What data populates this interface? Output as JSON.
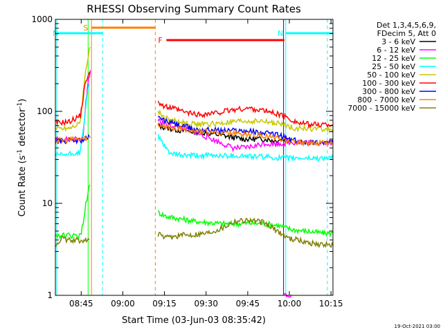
{
  "chart_data": {
    "type": "line",
    "title": "RHESSI Observing Summary Count Rates",
    "xlabel": "Start Time (03-Jun-03 08:35:42)",
    "ylabel": "Count Rate (s",
    "ylabel_sup1": "-1",
    "ylabel_mid": " detector",
    "ylabel_sup2": "-1",
    "ylabel_end": ")",
    "y_scale": "log",
    "ylim": [
      1,
      1000
    ],
    "xlim_minutes": [
      0,
      100
    ],
    "x_ticks": [
      {
        "label": "08:45",
        "value": 9.3
      },
      {
        "label": "09:00",
        "value": 24.3
      },
      {
        "label": "09:15",
        "value": 39.3
      },
      {
        "label": "09:30",
        "value": 54.3
      },
      {
        "label": "09:45",
        "value": 69.3
      },
      {
        "label": "10:00",
        "value": 84.3
      },
      {
        "label": "10:15",
        "value": 99.3
      }
    ],
    "y_ticks": [
      {
        "label": "1",
        "value": 1
      },
      {
        "label": "10",
        "value": 10
      },
      {
        "label": "100",
        "value": 100
      },
      {
        "label": "1000",
        "value": 1000
      }
    ],
    "legend_header": [
      "Det 1,3,4,5,6,9,",
      "FDecim 5, Att 0"
    ],
    "series": [
      {
        "name": "3 - 6 keV",
        "color": "#000000",
        "segments": [
          [
            [
              37,
              70
            ],
            [
              40,
              66
            ],
            [
              45,
              62
            ],
            [
              50,
              60
            ],
            [
              55,
              58
            ],
            [
              60,
              55
            ],
            [
              64,
              52
            ],
            [
              68,
              50
            ],
            [
              72,
              50
            ],
            [
              76,
              50
            ],
            [
              79,
              48
            ],
            [
              82,
              50
            ],
            [
              85,
              50
            ]
          ]
        ]
      },
      {
        "name": "6 - 12 keV",
        "color": "#ff00ff",
        "segments": [
          [
            [
              0,
              50
            ],
            [
              5,
              49
            ],
            [
              9,
              50
            ],
            [
              10,
              55
            ],
            [
              11,
              130
            ],
            [
              12,
              220
            ],
            [
              12.6,
              280
            ]
          ],
          [
            [
              37,
              80
            ],
            [
              40,
              72
            ],
            [
              45,
              66
            ],
            [
              50,
              60
            ],
            [
              55,
              52
            ],
            [
              60,
              45
            ],
            [
              64,
              40
            ],
            [
              68,
              40
            ],
            [
              72,
              42
            ],
            [
              75,
              45
            ],
            [
              79,
              44
            ],
            [
              82,
              45
            ],
            [
              85,
              46
            ],
            [
              90,
              46
            ],
            [
              95,
              46
            ],
            [
              100,
              46
            ]
          ],
          [
            [
              82,
              1
            ],
            [
              85,
              1
            ]
          ]
        ]
      },
      {
        "name": "12 - 25 keV",
        "color": "#00ff00",
        "segments": [
          [
            [
              0,
              4.5
            ],
            [
              9,
              4.4
            ],
            [
              10,
              6
            ],
            [
              11,
              10
            ],
            [
              12.4,
              16
            ]
          ],
          [
            [
              37,
              8
            ],
            [
              40,
              7.2
            ],
            [
              45,
              6.8
            ],
            [
              50,
              6.4
            ],
            [
              55,
              6.2
            ],
            [
              60,
              6.0
            ],
            [
              65,
              6.0
            ],
            [
              70,
              6.1
            ],
            [
              75,
              6.0
            ],
            [
              80,
              5.8
            ],
            [
              85,
              5.2
            ],
            [
              90,
              5.0
            ],
            [
              95,
              4.8
            ],
            [
              100,
              4.7
            ]
          ]
        ]
      },
      {
        "name": "25 - 50 keV",
        "color": "#00ffff",
        "segments": [
          [
            [
              0,
              33
            ],
            [
              5,
              34
            ],
            [
              9,
              36
            ],
            [
              10,
              60
            ],
            [
              11,
              120
            ],
            [
              12.2,
              200
            ]
          ],
          [
            [
              37,
              55
            ],
            [
              39,
              42
            ],
            [
              42,
              34
            ],
            [
              47,
              33
            ],
            [
              55,
              33
            ],
            [
              65,
              33
            ],
            [
              75,
              32
            ],
            [
              82,
              31
            ],
            [
              90,
              31
            ],
            [
              100,
              31
            ]
          ]
        ]
      },
      {
        "name": "50 - 100 keV",
        "color": "#c8c800",
        "segments": [
          [
            [
              0,
              65
            ],
            [
              5,
              66
            ],
            [
              9,
              75
            ],
            [
              10,
              150
            ],
            [
              11,
              300
            ],
            [
              12.5,
              500
            ]
          ],
          [
            [
              37,
              100
            ],
            [
              39,
              86
            ],
            [
              42,
              80
            ],
            [
              47,
              74
            ],
            [
              52,
              72
            ],
            [
              60,
              74
            ],
            [
              67,
              78
            ],
            [
              75,
              78
            ],
            [
              82,
              72
            ],
            [
              86,
              66
            ],
            [
              92,
              65
            ],
            [
              100,
              64
            ]
          ]
        ]
      },
      {
        "name": "100 - 300 keV",
        "color": "#ff0000",
        "segments": [
          [
            [
              0,
              75
            ],
            [
              5,
              77
            ],
            [
              9,
              90
            ],
            [
              10,
              140
            ],
            [
              11,
              220
            ],
            [
              12.6,
              260
            ]
          ],
          [
            [
              37,
              130
            ],
            [
              39,
              113
            ],
            [
              42,
              108
            ],
            [
              47,
              97
            ],
            [
              52,
              92
            ],
            [
              58,
              96
            ],
            [
              64,
              104
            ],
            [
              70,
              108
            ],
            [
              75,
              102
            ],
            [
              80,
              94
            ],
            [
              84,
              84
            ],
            [
              88,
              74
            ],
            [
              92,
              72
            ],
            [
              100,
              72
            ]
          ]
        ]
      },
      {
        "name": "300 - 800 keV",
        "color": "#0000ff",
        "segments": [
          [
            [
              0,
              47
            ],
            [
              5,
              48
            ],
            [
              9,
              48
            ],
            [
              11,
              50
            ],
            [
              12.6,
              52
            ]
          ],
          [
            [
              37,
              85
            ],
            [
              40,
              78
            ],
            [
              45,
              70
            ],
            [
              50,
              64
            ],
            [
              55,
              63
            ],
            [
              60,
              62
            ],
            [
              65,
              62
            ],
            [
              70,
              61
            ],
            [
              75,
              58
            ],
            [
              80,
              56
            ],
            [
              84,
              50
            ],
            [
              88,
              47
            ],
            [
              92,
              46
            ],
            [
              100,
              46
            ]
          ]
        ]
      },
      {
        "name": "800 - 7000 keV",
        "color": "#ff8000",
        "segments": [
          [
            [
              0,
              48
            ],
            [
              5,
              49
            ],
            [
              9,
              50
            ],
            [
              11,
              51
            ],
            [
              12.6,
              52
            ]
          ],
          [
            [
              37,
              70
            ],
            [
              40,
              67
            ],
            [
              45,
              64
            ],
            [
              50,
              62
            ],
            [
              55,
              60
            ],
            [
              60,
              58
            ],
            [
              65,
              57
            ],
            [
              70,
              56
            ],
            [
              75,
              54
            ],
            [
              80,
              52
            ],
            [
              84,
              48
            ],
            [
              88,
              46
            ],
            [
              92,
              45
            ],
            [
              100,
              45
            ]
          ]
        ]
      },
      {
        "name": "7000 - 15000 keV",
        "color": "#808000",
        "segments": [
          [
            [
              0,
              3.5
            ],
            [
              1,
              3.8
            ],
            [
              2,
              4.2
            ],
            [
              4,
              4.0
            ],
            [
              7,
              3.9
            ],
            [
              9,
              4.0
            ],
            [
              12.2,
              4.0
            ]
          ],
          [
            [
              37,
              4.6
            ],
            [
              40,
              4.2
            ],
            [
              45,
              4.5
            ],
            [
              50,
              4.6
            ],
            [
              55,
              4.8
            ],
            [
              60,
              5.4
            ],
            [
              65,
              6.5
            ],
            [
              70,
              6.6
            ],
            [
              75,
              6.2
            ],
            [
              80,
              5.0
            ],
            [
              84,
              4.2
            ],
            [
              90,
              3.8
            ],
            [
              95,
              3.6
            ],
            [
              100,
              3.5
            ]
          ]
        ]
      }
    ],
    "annotation_bars": [
      {
        "label": "S",
        "color": "#ff8000",
        "start": 13,
        "end": 36
      },
      {
        "label": "N",
        "color": "#00ffff",
        "start": -1,
        "end": 17
      },
      {
        "label": "N",
        "color": "#00ffff",
        "start": 83,
        "end": 100
      },
      {
        "label": "F",
        "color": "#ff0000",
        "start": 40,
        "end": 82.5
      }
    ],
    "vertical_markers": [
      {
        "color": "#00ffff",
        "value": 0.5,
        "dashed": false
      },
      {
        "color": "#00ff00",
        "value": 11.8,
        "dashed": false
      },
      {
        "color": "#ff8000",
        "value": 13,
        "dashed": false
      },
      {
        "color": "#00ffff",
        "value": 17,
        "dashed": true
      },
      {
        "color": "#ff8000",
        "value": 36,
        "dashed": true
      },
      {
        "color": "#0000ff",
        "value": 82.2,
        "dashed": false
      },
      {
        "color": "#00ffff",
        "value": 83,
        "dashed": false
      },
      {
        "color": "#00ffff",
        "value": 98,
        "dashed": true
      }
    ],
    "footer_date": "19-Oct-2021 03:00"
  }
}
